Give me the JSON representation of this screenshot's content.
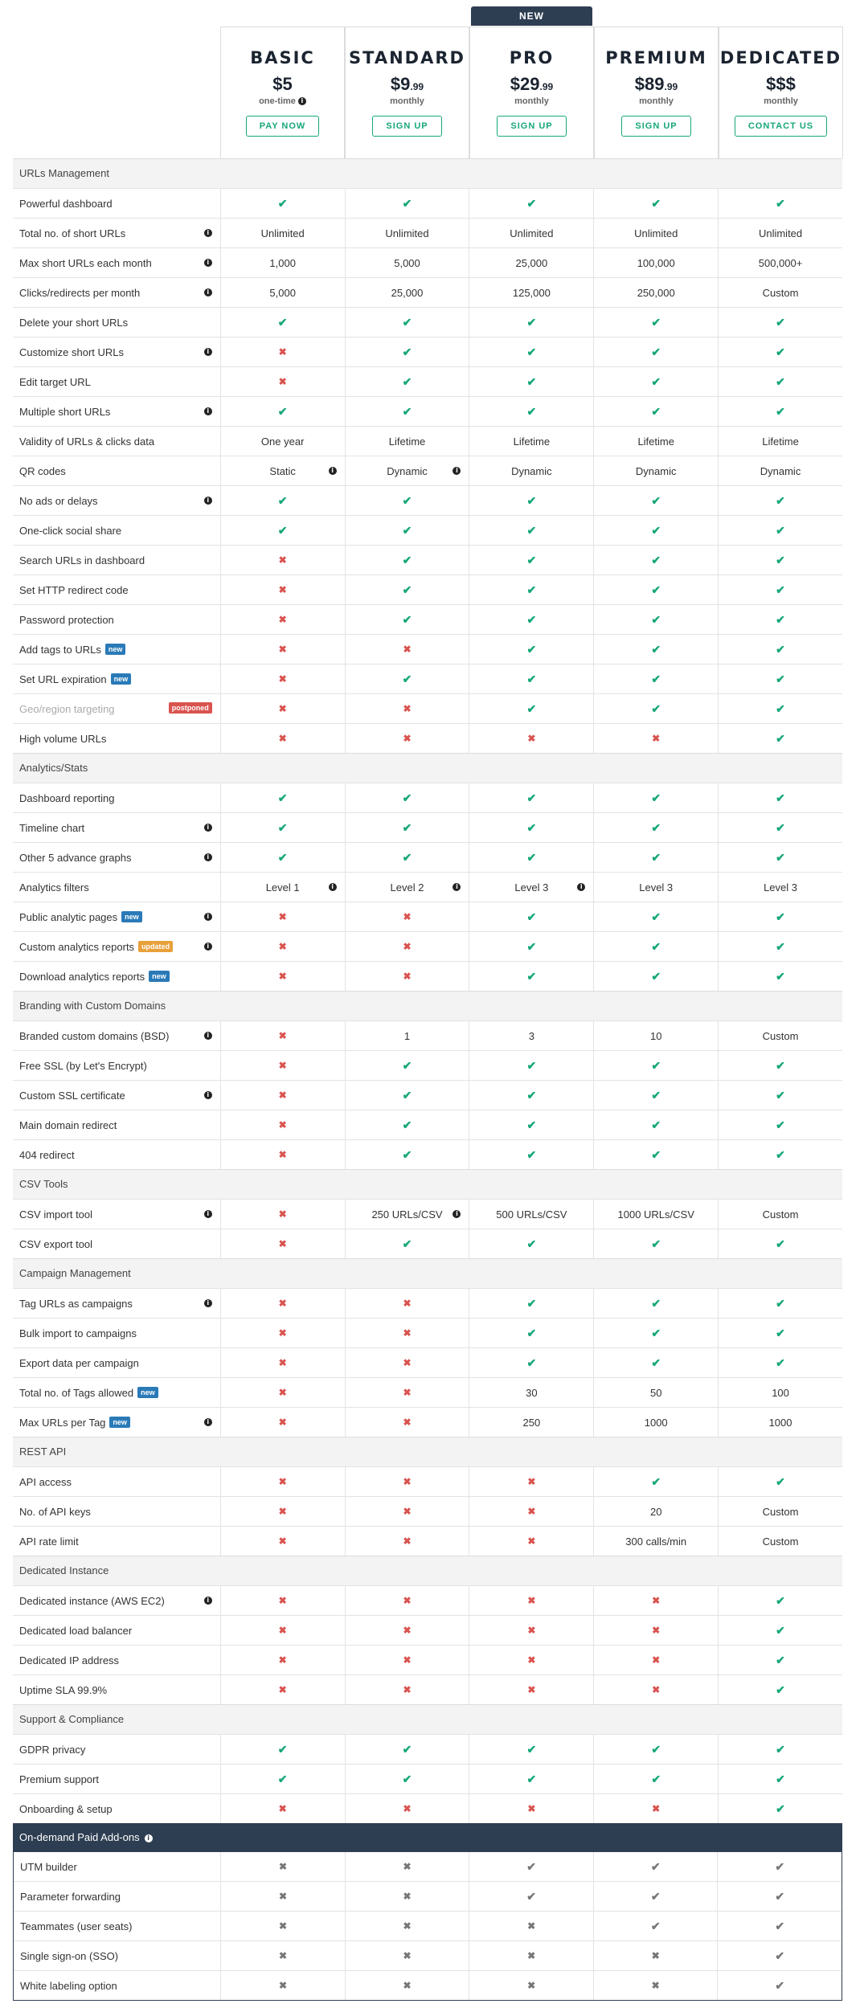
{
  "plans": [
    {
      "name": "BASIC",
      "price": "$5",
      "cents": "",
      "period": "one-time",
      "period_info": true,
      "button": "PAY NOW",
      "new": false
    },
    {
      "name": "STANDARD",
      "price": "$9",
      "cents": ".99",
      "period": "monthly",
      "period_info": false,
      "button": "SIGN UP",
      "new": false
    },
    {
      "name": "PRO",
      "price": "$29",
      "cents": ".99",
      "period": "monthly",
      "period_info": false,
      "button": "SIGN UP",
      "new": true
    },
    {
      "name": "PREMIUM",
      "price": "$89",
      "cents": ".99",
      "period": "monthly",
      "period_info": false,
      "button": "SIGN UP",
      "new": false
    },
    {
      "name": "DEDICATED",
      "price": "$$$",
      "cents": "",
      "period": "monthly",
      "period_info": false,
      "button": "CONTACT US",
      "new": false
    }
  ],
  "new_badge": "NEW",
  "sections": [
    {
      "title": "URLs Management",
      "rows": [
        {
          "label": "Powerful dashboard",
          "values": [
            "y",
            "y",
            "y",
            "y",
            "y"
          ]
        },
        {
          "label": "Total no. of short URLs",
          "info": true,
          "values": [
            "Unlimited",
            "Unlimited",
            "Unlimited",
            "Unlimited",
            "Unlimited"
          ]
        },
        {
          "label": "Max short URLs each month",
          "info": true,
          "values": [
            "1,000",
            "5,000",
            "25,000",
            "100,000",
            "500,000+"
          ]
        },
        {
          "label": "Clicks/redirects per month",
          "info": true,
          "values": [
            "5,000",
            "25,000",
            "125,000",
            "250,000",
            "Custom"
          ]
        },
        {
          "label": "Delete your short URLs",
          "values": [
            "y",
            "y",
            "y",
            "y",
            "y"
          ]
        },
        {
          "label": "Customize short URLs",
          "info": true,
          "values": [
            "n",
            "y",
            "y",
            "y",
            "y"
          ]
        },
        {
          "label": "Edit target URL",
          "values": [
            "n",
            "y",
            "y",
            "y",
            "y"
          ]
        },
        {
          "label": "Multiple short URLs",
          "info": true,
          "values": [
            "y",
            "y",
            "y",
            "y",
            "y"
          ]
        },
        {
          "label": "Validity of URLs & clicks data",
          "values": [
            "One year",
            "Lifetime",
            "Lifetime",
            "Lifetime",
            "Lifetime"
          ]
        },
        {
          "label": "QR codes",
          "values": [
            "Static",
            "Dynamic",
            "Dynamic",
            "Dynamic",
            "Dynamic"
          ],
          "cell_info": [
            true,
            true,
            false,
            false,
            false
          ]
        },
        {
          "label": "No ads or delays",
          "info": true,
          "values": [
            "y",
            "y",
            "y",
            "y",
            "y"
          ]
        },
        {
          "label": "One-click social share",
          "values": [
            "y",
            "y",
            "y",
            "y",
            "y"
          ]
        },
        {
          "label": "Search URLs in dashboard",
          "values": [
            "n",
            "y",
            "y",
            "y",
            "y"
          ]
        },
        {
          "label": "Set HTTP redirect code",
          "values": [
            "n",
            "y",
            "y",
            "y",
            "y"
          ]
        },
        {
          "label": "Password protection",
          "values": [
            "n",
            "y",
            "y",
            "y",
            "y"
          ]
        },
        {
          "label": "Add tags to URLs",
          "tag": "new",
          "values": [
            "n",
            "n",
            "y",
            "y",
            "y"
          ]
        },
        {
          "label": "Set URL expiration",
          "tag": "new",
          "values": [
            "n",
            "y",
            "y",
            "y",
            "y"
          ]
        },
        {
          "label": "Geo/region targeting",
          "tag": "postponed",
          "muted": true,
          "values": [
            "n",
            "n",
            "y",
            "y",
            "y"
          ]
        },
        {
          "label": "High volume URLs",
          "values": [
            "n",
            "n",
            "n",
            "n",
            "y"
          ]
        }
      ]
    },
    {
      "title": "Analytics/Stats",
      "rows": [
        {
          "label": "Dashboard reporting",
          "values": [
            "y",
            "y",
            "y",
            "y",
            "y"
          ]
        },
        {
          "label": "Timeline chart",
          "info": true,
          "values": [
            "y",
            "y",
            "y",
            "y",
            "y"
          ]
        },
        {
          "label": "Other 5 advance graphs",
          "info": true,
          "values": [
            "y",
            "y",
            "y",
            "y",
            "y"
          ]
        },
        {
          "label": "Analytics filters",
          "values": [
            "Level 1",
            "Level 2",
            "Level 3",
            "Level 3",
            "Level 3"
          ],
          "cell_info": [
            true,
            true,
            true,
            false,
            false
          ]
        },
        {
          "label": "Public analytic pages",
          "tag": "new",
          "info": true,
          "values": [
            "n",
            "n",
            "y",
            "y",
            "y"
          ]
        },
        {
          "label": "Custom analytics reports",
          "tag": "updated",
          "info": true,
          "values": [
            "n",
            "n",
            "y",
            "y",
            "y"
          ]
        },
        {
          "label": "Download analytics reports",
          "tag": "new",
          "values": [
            "n",
            "n",
            "y",
            "y",
            "y"
          ]
        }
      ]
    },
    {
      "title": "Branding with Custom Domains",
      "rows": [
        {
          "label": "Branded custom domains (BSD)",
          "info": true,
          "values": [
            "n",
            "1",
            "3",
            "10",
            "Custom"
          ]
        },
        {
          "label": "Free SSL (by Let's Encrypt)",
          "values": [
            "n",
            "y",
            "y",
            "y",
            "y"
          ]
        },
        {
          "label": "Custom SSL certificate",
          "info": true,
          "values": [
            "n",
            "y",
            "y",
            "y",
            "y"
          ]
        },
        {
          "label": "Main domain redirect",
          "values": [
            "n",
            "y",
            "y",
            "y",
            "y"
          ]
        },
        {
          "label": "404 redirect",
          "values": [
            "n",
            "y",
            "y",
            "y",
            "y"
          ]
        }
      ]
    },
    {
      "title": "CSV Tools",
      "rows": [
        {
          "label": "CSV import tool",
          "info": true,
          "values": [
            "n",
            "250 URLs/CSV",
            "500 URLs/CSV",
            "1000 URLs/CSV",
            "Custom"
          ],
          "cell_info": [
            false,
            true,
            false,
            false,
            false
          ]
        },
        {
          "label": "CSV export tool",
          "values": [
            "n",
            "y",
            "y",
            "y",
            "y"
          ]
        }
      ]
    },
    {
      "title": "Campaign Management",
      "rows": [
        {
          "label": "Tag URLs as campaigns",
          "info": true,
          "values": [
            "n",
            "n",
            "y",
            "y",
            "y"
          ]
        },
        {
          "label": "Bulk import to campaigns",
          "values": [
            "n",
            "n",
            "y",
            "y",
            "y"
          ]
        },
        {
          "label": "Export data per campaign",
          "values": [
            "n",
            "n",
            "y",
            "y",
            "y"
          ]
        },
        {
          "label": "Total no. of Tags allowed",
          "tag": "new",
          "values": [
            "n",
            "n",
            "30",
            "50",
            "100"
          ]
        },
        {
          "label": "Max URLs per Tag",
          "tag": "new",
          "info": true,
          "values": [
            "n",
            "n",
            "250",
            "1000",
            "1000"
          ]
        }
      ]
    },
    {
      "title": "REST API",
      "rows": [
        {
          "label": "API access",
          "values": [
            "n",
            "n",
            "n",
            "y",
            "y"
          ]
        },
        {
          "label": "No. of API keys",
          "values": [
            "n",
            "n",
            "n",
            "20",
            "Custom"
          ]
        },
        {
          "label": "API rate limit",
          "values": [
            "n",
            "n",
            "n",
            "300 calls/min",
            "Custom"
          ]
        }
      ]
    },
    {
      "title": "Dedicated Instance",
      "rows": [
        {
          "label": "Dedicated instance (AWS EC2)",
          "info": true,
          "values": [
            "n",
            "n",
            "n",
            "n",
            "y"
          ]
        },
        {
          "label": "Dedicated load balancer",
          "values": [
            "n",
            "n",
            "n",
            "n",
            "y"
          ]
        },
        {
          "label": "Dedicated IP address",
          "values": [
            "n",
            "n",
            "n",
            "n",
            "y"
          ]
        },
        {
          "label": "Uptime SLA 99.9%",
          "values": [
            "n",
            "n",
            "n",
            "n",
            "y"
          ]
        }
      ]
    },
    {
      "title": "Support & Compliance",
      "rows": [
        {
          "label": "GDPR privacy",
          "values": [
            "y",
            "y",
            "y",
            "y",
            "y"
          ]
        },
        {
          "label": "Premium support",
          "values": [
            "y",
            "y",
            "y",
            "y",
            "y"
          ]
        },
        {
          "label": "Onboarding & setup",
          "values": [
            "n",
            "n",
            "n",
            "n",
            "y"
          ]
        }
      ]
    }
  ],
  "addons": {
    "title": "On-demand Paid Add-ons",
    "rows": [
      {
        "label": "UTM builder",
        "values": [
          "gn",
          "gn",
          "gy",
          "gy",
          "gy"
        ]
      },
      {
        "label": "Parameter forwarding",
        "values": [
          "gn",
          "gn",
          "gy",
          "gy",
          "gy"
        ]
      },
      {
        "label": "Teammates (user seats)",
        "values": [
          "gn",
          "gn",
          "gn",
          "gy",
          "gy"
        ]
      },
      {
        "label": "Single sign-on (SSO)",
        "values": [
          "gn",
          "gn",
          "gn",
          "gn",
          "gy"
        ]
      },
      {
        "label": "White labeling option",
        "values": [
          "gn",
          "gn",
          "gn",
          "gn",
          "gy"
        ]
      }
    ]
  },
  "icons": {
    "yes": "check-icon",
    "no": "cross-icon",
    "info": "info-icon"
  },
  "colors": {
    "accent": "#16a77a",
    "no": "#d9534f",
    "header": "#2e3e52",
    "tag_new": "#2a7ab8",
    "tag_updated": "#e8a13a",
    "tag_postponed": "#d9534f"
  }
}
